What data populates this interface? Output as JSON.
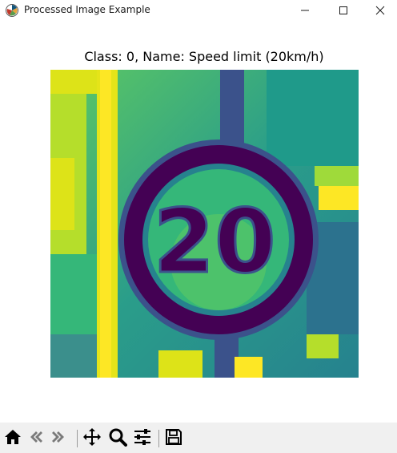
{
  "window": {
    "title": "Processed Image Example",
    "icon": "matplotlib-icon",
    "controls": [
      "minimize-icon",
      "maximize-icon",
      "close-icon"
    ]
  },
  "figure": {
    "title": "Class: 0, Name: Speed limit (20km/h)",
    "image_content": "20",
    "colormap": "viridis"
  },
  "toolbar": {
    "buttons": [
      "home-icon",
      "back-icon",
      "forward-icon",
      "pan-icon",
      "zoom-icon",
      "configure-subplots-icon",
      "save-icon"
    ]
  },
  "colors": {
    "titlebar_bg": "#ffffff",
    "toolbar_bg": "#f0f0f0",
    "viridis_dark": "#440154",
    "viridis_blue": "#3b528b",
    "viridis_teal": "#21918c",
    "viridis_green": "#5ec962",
    "viridis_yellow": "#fde725"
  }
}
